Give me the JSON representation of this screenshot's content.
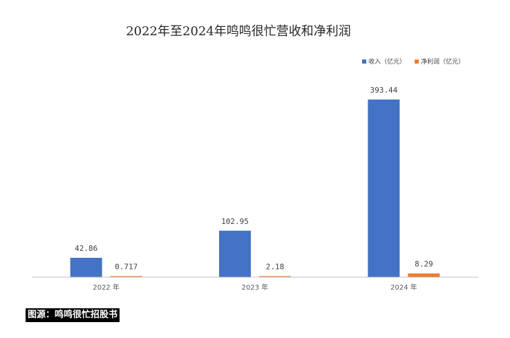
{
  "chart_data": {
    "type": "bar",
    "title": "2022年至2024年鸣鸣很忙营收和净利润",
    "categories": [
      "2022 年",
      "2023 年",
      "2024 年"
    ],
    "series": [
      {
        "name": "收入（亿元）",
        "values": [
          42.86,
          102.95,
          393.44
        ],
        "labels": [
          "42.86",
          "102.95",
          "393.44"
        ],
        "color": "#4472c4"
      },
      {
        "name": "净利润（亿元）",
        "values": [
          0.717,
          2.18,
          8.29
        ],
        "labels": [
          "0.717",
          "2.18",
          "8.29"
        ],
        "color": "#ed7d31"
      }
    ],
    "ylim": [
      0,
      400
    ],
    "grid": false,
    "legend_position": "top-right",
    "axis_color": "#bfbfbf"
  },
  "source_text": "图源：鸣鸣很忙招股书"
}
